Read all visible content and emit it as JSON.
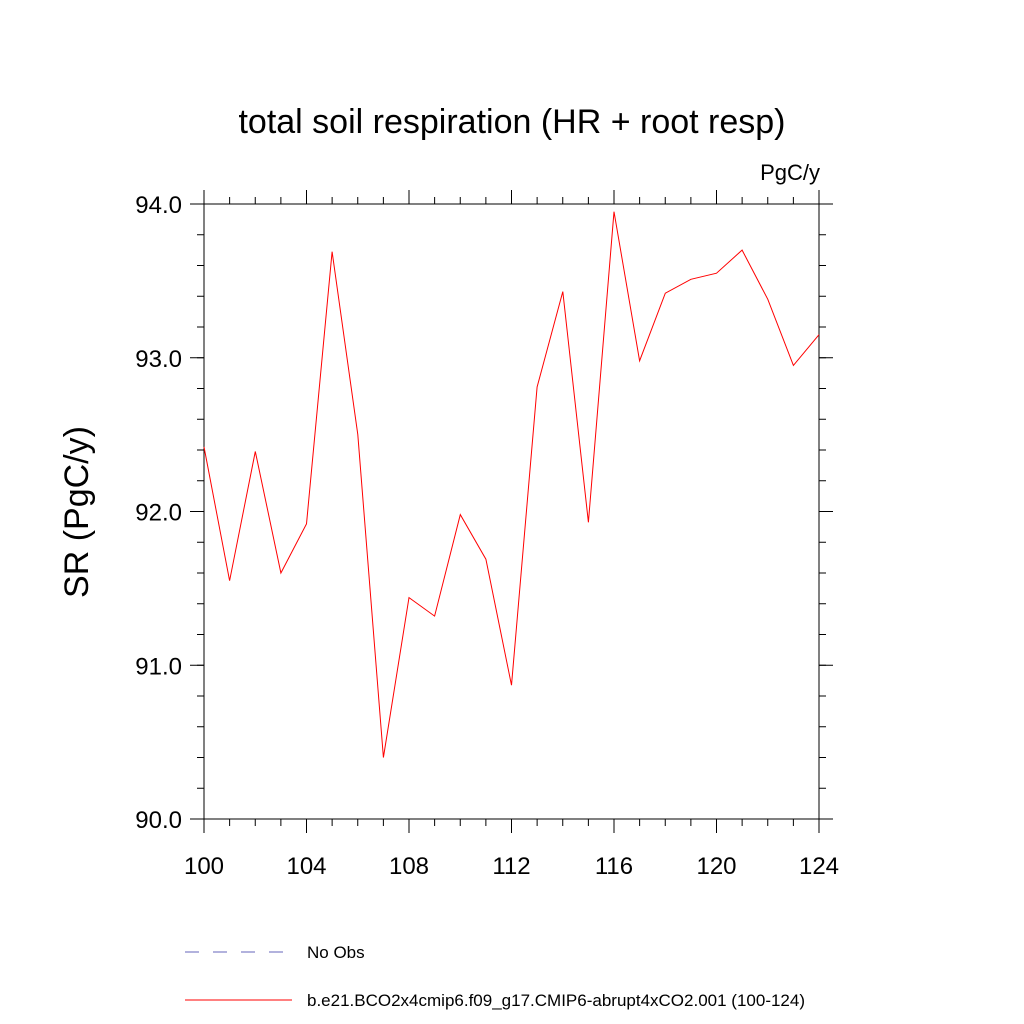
{
  "chart_data": {
    "type": "line",
    "title": "total soil respiration (HR + root resp)",
    "units_label": "PgC/y",
    "ylabel": "SR  (PgC/y)",
    "xlabel": "",
    "xlim": [
      100,
      124
    ],
    "ylim": [
      90.0,
      94.0
    ],
    "x_ticks": [
      100,
      104,
      108,
      112,
      116,
      120,
      124
    ],
    "y_ticks": [
      "90.0",
      "91.0",
      "92.0",
      "93.0",
      "94.0"
    ],
    "y_tick_values": [
      90.0,
      91.0,
      92.0,
      93.0,
      94.0
    ],
    "series": [
      {
        "name": "b.e21.BCO2x4cmip6.f09_g17.CMIP6-abrupt4xCO2.001 (100-124)",
        "color": "#ff0000",
        "x": [
          100,
          101,
          102,
          103,
          104,
          105,
          106,
          107,
          108,
          109,
          110,
          111,
          112,
          113,
          114,
          115,
          116,
          117,
          118,
          119,
          120,
          121,
          122,
          123,
          124
        ],
        "values": [
          92.42,
          91.55,
          92.39,
          91.6,
          91.92,
          93.69,
          92.5,
          90.4,
          91.44,
          91.32,
          91.98,
          91.69,
          90.87,
          92.81,
          93.43,
          91.93,
          93.95,
          92.98,
          93.42,
          93.51,
          93.55,
          93.7,
          93.38,
          92.95,
          93.15
        ]
      }
    ],
    "legend": [
      {
        "label": "No Obs",
        "color": "#6666bb",
        "style": "dashed"
      },
      {
        "label": "b.e21.BCO2x4cmip6.f09_g17.CMIP6-abrupt4xCO2.001 (100-124)",
        "color": "#ff0000",
        "style": "solid"
      }
    ]
  }
}
